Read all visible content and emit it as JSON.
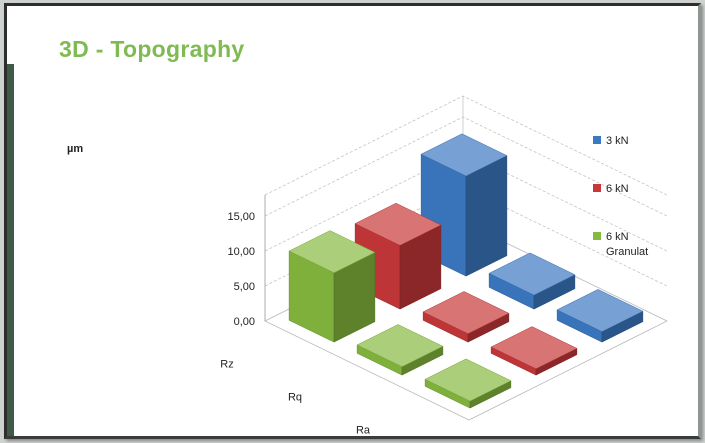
{
  "title": "3D - Topography",
  "chart_data": {
    "type": "bar",
    "variant": "3d-column",
    "unit_label": "µm",
    "y_tick_labels": [
      "0,00",
      "5,00",
      "10,00",
      "15,00"
    ],
    "ylim": [
      0,
      18
    ],
    "categories": [
      "Rz",
      "Rq",
      "Ra"
    ],
    "series": [
      {
        "name": "3 kN",
        "color": "#3c79c3",
        "values": [
          14.3,
          2.0,
          1.5
        ]
      },
      {
        "name": "6 kN",
        "color": "#c8383a",
        "values": [
          9.1,
          1.2,
          0.9
        ]
      },
      {
        "name": "6 kN Granulat",
        "color": "#86b93f",
        "values": [
          9.9,
          1.2,
          1.0
        ]
      }
    ],
    "legend": {
      "position": "right",
      "lines": [
        [
          "3 kN"
        ],
        [
          "6 kN"
        ],
        [
          "6 kN",
          "Granulat"
        ]
      ]
    },
    "grid": true
  }
}
